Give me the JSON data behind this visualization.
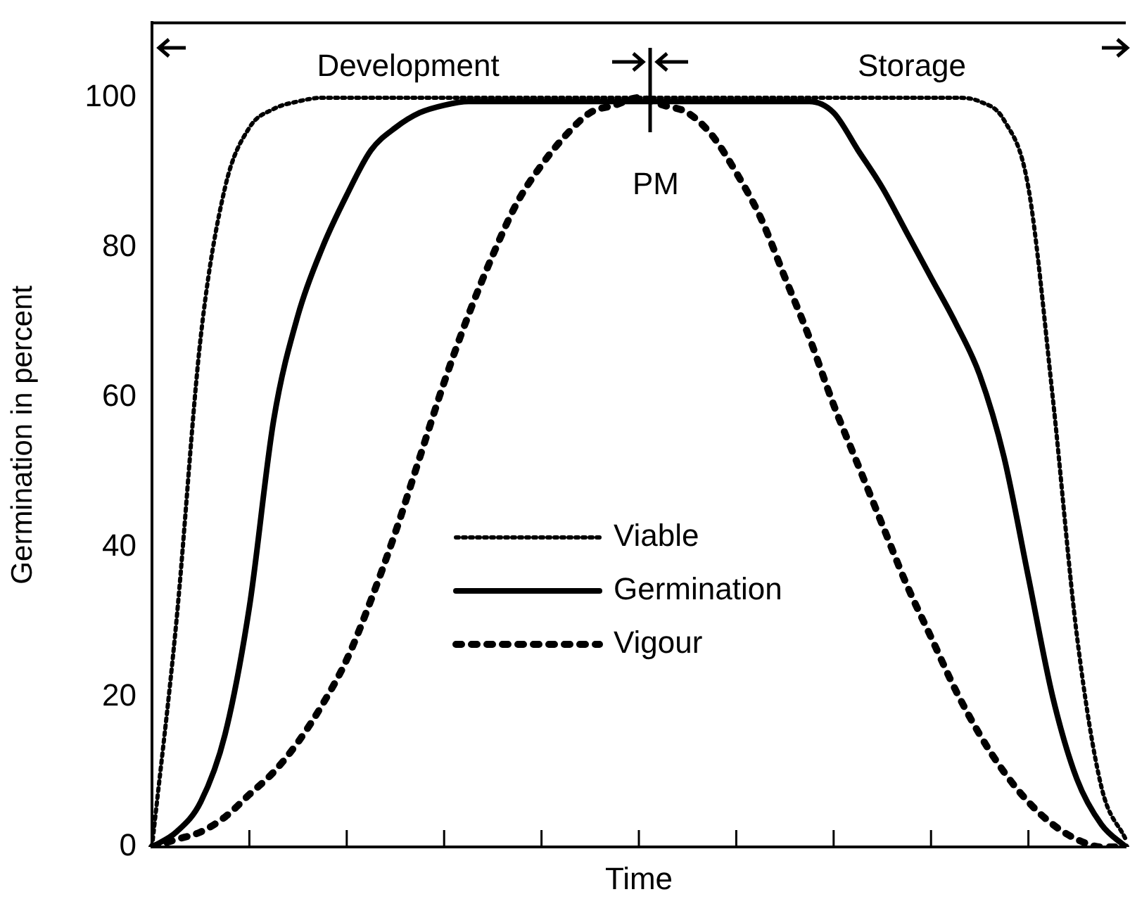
{
  "chart_data": {
    "type": "line",
    "xlabel": "Time",
    "ylabel": "Germination in percent",
    "categories": [
      null,
      null,
      null,
      null,
      null,
      null,
      null,
      null,
      null,
      null,
      null,
      null,
      null,
      null,
      null,
      null,
      null,
      null,
      null,
      null,
      null,
      null,
      null,
      null,
      null,
      null,
      null,
      null,
      null,
      null,
      null,
      null,
      null,
      null,
      null,
      null,
      null,
      null,
      null,
      null,
      null
    ],
    "series": [
      {
        "name": "Viable",
        "color": "#000000",
        "line_style": "dotted",
        "values": [
          0,
          30,
          68,
          88,
          96,
          98.5,
          99.5,
          100,
          100,
          100,
          100,
          100,
          100,
          100,
          100,
          100,
          100,
          100,
          100,
          100,
          100,
          100,
          100,
          100,
          100,
          100,
          100,
          100,
          100,
          100,
          100,
          100,
          100,
          100,
          99.5,
          97,
          88,
          60,
          28,
          8,
          1
        ]
      },
      {
        "name": "Germination",
        "color": "#000000",
        "line_style": "solid",
        "values": [
          0,
          2,
          6,
          15,
          32,
          57,
          71,
          80,
          87,
          93,
          96,
          98,
          99,
          99.5,
          99.5,
          99.5,
          99.5,
          99.5,
          99.5,
          99.5,
          99.5,
          99.5,
          99.5,
          99.5,
          99.5,
          99.5,
          99.5,
          99.5,
          98,
          93,
          88,
          82,
          76,
          70,
          63,
          52,
          36,
          20,
          9,
          3,
          0
        ]
      },
      {
        "name": "Vigour",
        "color": "#000000",
        "line_style": "dashed",
        "values": [
          0,
          1,
          2,
          4,
          7,
          10,
          14,
          19,
          25,
          33,
          42,
          52,
          62,
          71,
          79,
          86,
          91,
          95,
          98,
          99,
          100,
          99,
          98,
          95,
          90,
          84,
          76,
          68,
          59,
          51,
          43,
          35,
          28,
          21,
          15,
          10,
          6,
          3,
          1,
          0,
          0
        ]
      }
    ],
    "ylim": [
      0,
      110
    ],
    "yticks": [
      0,
      20,
      40,
      60,
      80,
      100
    ],
    "grid": false,
    "legend": "bottom",
    "marker": "none",
    "annotations": [
      "Development",
      "Storage",
      "PM"
    ]
  }
}
